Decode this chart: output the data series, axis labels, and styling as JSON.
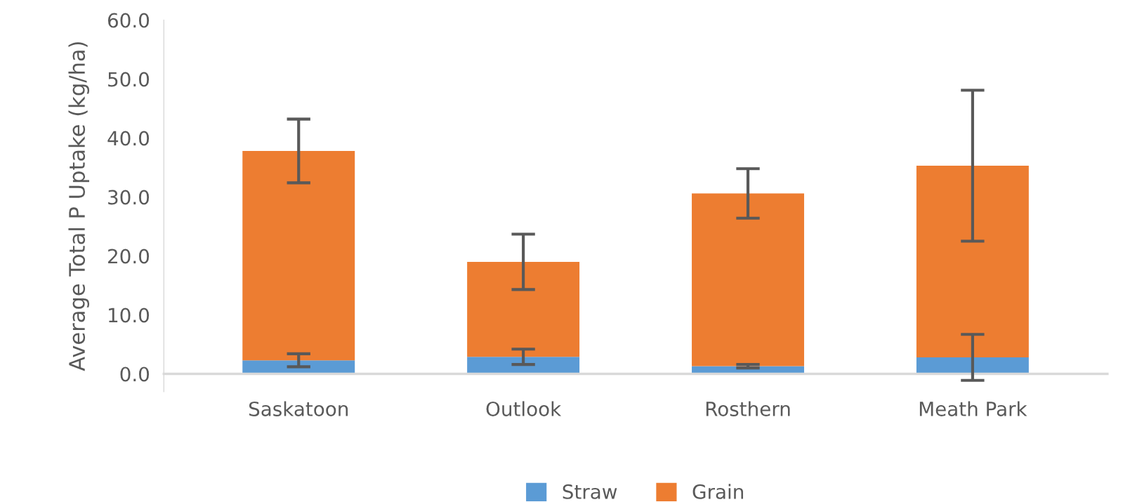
{
  "chart_data": {
    "type": "bar",
    "stacked": true,
    "ylabel": "Average Total P Uptake (kg/ha)",
    "categories": [
      "Saskatoon",
      "Outlook",
      "Rosthern",
      "Meath Park"
    ],
    "series": [
      {
        "name": "Straw",
        "color": "#5b9bd5",
        "values": [
          2.3,
          2.9,
          1.3,
          2.8
        ],
        "errors": [
          1.1,
          1.3,
          0.3,
          3.9
        ]
      },
      {
        "name": "Grain",
        "color": "#ed7d31",
        "values": [
          35.5,
          16.1,
          29.3,
          32.5
        ],
        "errors": [
          5.4,
          4.7,
          4.2,
          12.8
        ]
      }
    ],
    "ylim": [
      -3,
      60
    ],
    "yticks": [
      {
        "value": 0,
        "label": "0.0"
      },
      {
        "value": 10,
        "label": "10.0"
      },
      {
        "value": 20,
        "label": "20.0"
      },
      {
        "value": 30,
        "label": "30.0"
      },
      {
        "value": 40,
        "label": "40.0"
      },
      {
        "value": 50,
        "label": "50.0"
      },
      {
        "value": 60,
        "label": "60.0"
      }
    ],
    "grid": false,
    "legend": "bottom"
  }
}
